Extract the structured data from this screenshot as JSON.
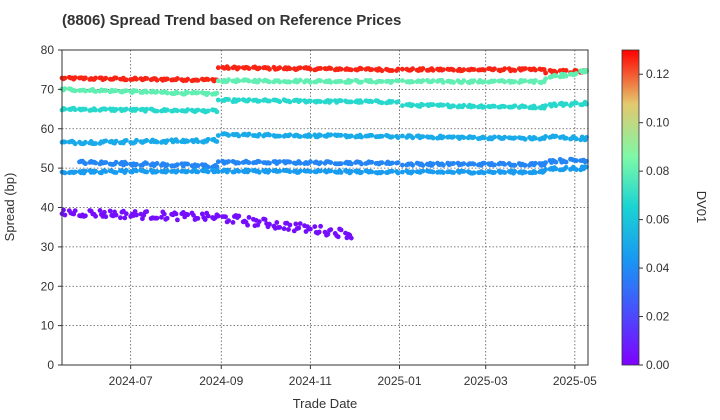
{
  "chart_data": {
    "type": "scatter",
    "title": "(8806)   Spread Trend based on Reference Prices",
    "xlabel": "Trade Date",
    "ylabel": "Spread (bp)",
    "xlim": [
      "2024-05-15",
      "2025-05-10"
    ],
    "ylim": [
      0,
      80
    ],
    "x_ticks": [
      "2024-07",
      "2024-09",
      "2024-11",
      "2025-01",
      "2025-03",
      "2025-05"
    ],
    "y_ticks": [
      0,
      10,
      20,
      30,
      40,
      50,
      60,
      70,
      80
    ],
    "grid": true,
    "colorbar": {
      "label": "DV01",
      "range": [
        0,
        0.13
      ],
      "ticks": [
        "0.00",
        "0.02",
        "0.04",
        "0.06",
        "0.08",
        "0.10",
        "0.12"
      ],
      "colormap": "rainbow"
    },
    "series": [
      {
        "dv01": 0.126,
        "segments": [
          {
            "x": [
              "2024-05-15",
              "2024-08-29"
            ],
            "y": [
              72.8,
              72.4
            ],
            "noise": 0.3
          },
          {
            "x": [
              "2024-08-30",
              "2024-12-31"
            ],
            "y": [
              75.5,
              75.0
            ],
            "noise": 0.3
          },
          {
            "x": [
              "2025-01-03",
              "2025-04-10"
            ],
            "y": [
              75.0,
              75.0
            ],
            "noise": 0.3
          },
          {
            "x": [
              "2025-04-11",
              "2025-05-10"
            ],
            "y": [
              74.5,
              74.5
            ],
            "noise": 0.4
          }
        ]
      },
      {
        "dv01": 0.08,
        "segments": [
          {
            "x": [
              "2024-05-15",
              "2024-08-29"
            ],
            "y": [
              70.0,
              68.8
            ],
            "noise": 0.3
          },
          {
            "x": [
              "2024-08-30",
              "2024-12-31"
            ],
            "y": [
              72.2,
              72.0
            ],
            "noise": 0.3
          },
          {
            "x": [
              "2025-01-03",
              "2025-04-10"
            ],
            "y": [
              72.0,
              72.0
            ],
            "noise": 0.3
          },
          {
            "x": [
              "2025-04-11",
              "2025-05-10"
            ],
            "y": [
              73.0,
              74.6
            ],
            "noise": 0.4
          }
        ]
      },
      {
        "dv01": 0.068,
        "segments": [
          {
            "x": [
              "2024-05-15",
              "2024-08-29"
            ],
            "y": [
              65.0,
              64.5
            ],
            "noise": 0.3
          },
          {
            "x": [
              "2024-08-30",
              "2024-12-31"
            ],
            "y": [
              67.2,
              66.8
            ],
            "noise": 0.3
          },
          {
            "x": [
              "2025-01-03",
              "2025-04-10"
            ],
            "y": [
              66.0,
              65.5
            ],
            "noise": 0.3
          },
          {
            "x": [
              "2025-04-11",
              "2025-05-10"
            ],
            "y": [
              66.0,
              66.5
            ],
            "noise": 0.4
          }
        ]
      },
      {
        "dv01": 0.05,
        "segments": [
          {
            "x": [
              "2024-05-15",
              "2024-08-29"
            ],
            "y": [
              56.5,
              57.0
            ],
            "noise": 0.4
          },
          {
            "x": [
              "2024-08-30",
              "2024-12-31"
            ],
            "y": [
              58.5,
              58.0
            ],
            "noise": 0.3
          },
          {
            "x": [
              "2025-01-03",
              "2025-04-10"
            ],
            "y": [
              58.0,
              57.5
            ],
            "noise": 0.3
          },
          {
            "x": [
              "2025-04-11",
              "2025-05-10"
            ],
            "y": [
              58.0,
              57.5
            ],
            "noise": 0.4
          }
        ]
      },
      {
        "dv01": 0.038,
        "segments": [
          {
            "x": [
              "2024-05-25",
              "2024-08-29"
            ],
            "y": [
              51.5,
              50.5
            ],
            "noise": 0.4
          },
          {
            "x": [
              "2024-08-30",
              "2024-12-31"
            ],
            "y": [
              51.5,
              51.3
            ],
            "noise": 0.3
          },
          {
            "x": [
              "2025-01-03",
              "2025-04-10"
            ],
            "y": [
              51.0,
              51.0
            ],
            "noise": 0.3
          },
          {
            "x": [
              "2025-04-11",
              "2025-05-10"
            ],
            "y": [
              51.8,
              52.0
            ],
            "noise": 0.4
          }
        ]
      },
      {
        "dv01": 0.045,
        "segments": [
          {
            "x": [
              "2024-05-15",
              "2024-08-29"
            ],
            "y": [
              49.0,
              49.3
            ],
            "noise": 0.3
          },
          {
            "x": [
              "2024-08-30",
              "2024-12-31"
            ],
            "y": [
              49.3,
              49.0
            ],
            "noise": 0.3
          },
          {
            "x": [
              "2025-01-03",
              "2025-04-10"
            ],
            "y": [
              49.0,
              49.0
            ],
            "noise": 0.3
          },
          {
            "x": [
              "2025-04-11",
              "2025-05-10"
            ],
            "y": [
              49.8,
              50.0
            ],
            "noise": 0.4
          }
        ]
      },
      {
        "dv01": 0.004,
        "segments": [
          {
            "x": [
              "2024-05-15",
              "2024-08-29"
            ],
            "y": [
              38.8,
              37.5
            ],
            "noise": 1.0
          },
          {
            "x": [
              "2024-08-30",
              "2024-11-30"
            ],
            "y": [
              37.5,
              33.2
            ],
            "noise": 1.1
          }
        ]
      }
    ]
  }
}
